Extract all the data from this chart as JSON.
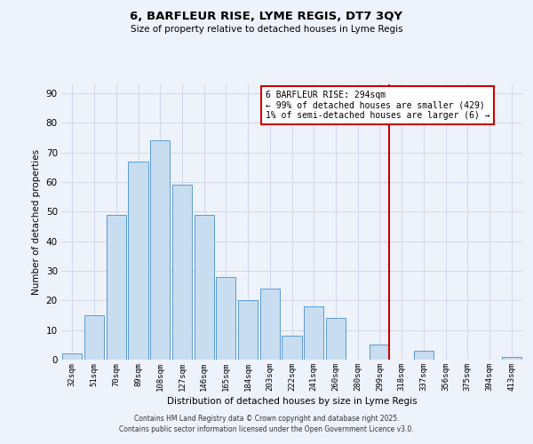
{
  "title": "6, BARFLEUR RISE, LYME REGIS, DT7 3QY",
  "subtitle": "Size of property relative to detached houses in Lyme Regis",
  "xlabel": "Distribution of detached houses by size in Lyme Regis",
  "ylabel": "Number of detached properties",
  "bar_labels": [
    "32sqm",
    "51sqm",
    "70sqm",
    "89sqm",
    "108sqm",
    "127sqm",
    "146sqm",
    "165sqm",
    "184sqm",
    "203sqm",
    "222sqm",
    "241sqm",
    "260sqm",
    "280sqm",
    "299sqm",
    "318sqm",
    "337sqm",
    "356sqm",
    "375sqm",
    "394sqm",
    "413sqm"
  ],
  "bar_values": [
    2,
    15,
    49,
    67,
    74,
    59,
    49,
    28,
    20,
    24,
    8,
    18,
    14,
    0,
    5,
    0,
    3,
    0,
    0,
    0,
    1
  ],
  "bar_color": "#c8ddf0",
  "bar_edge_color": "#5b9bd5",
  "grid_color": "#d0d8e8",
  "vline_index": 14,
  "vline_color": "#cc0000",
  "annotation_title": "6 BARFLEUR RISE: 294sqm",
  "annotation_line1": "← 99% of detached houses are smaller (429)",
  "annotation_line2": "1% of semi-detached houses are larger (6) →",
  "annotation_box_facecolor": "#ffffff",
  "annotation_box_edgecolor": "#cc0000",
  "footer_line1": "Contains HM Land Registry data © Crown copyright and database right 2025.",
  "footer_line2": "Contains public sector information licensed under the Open Government Licence v3.0.",
  "ylim": [
    0,
    93
  ],
  "yticks": [
    0,
    10,
    20,
    30,
    40,
    50,
    60,
    70,
    80,
    90
  ],
  "background_color": "#eef2fb"
}
